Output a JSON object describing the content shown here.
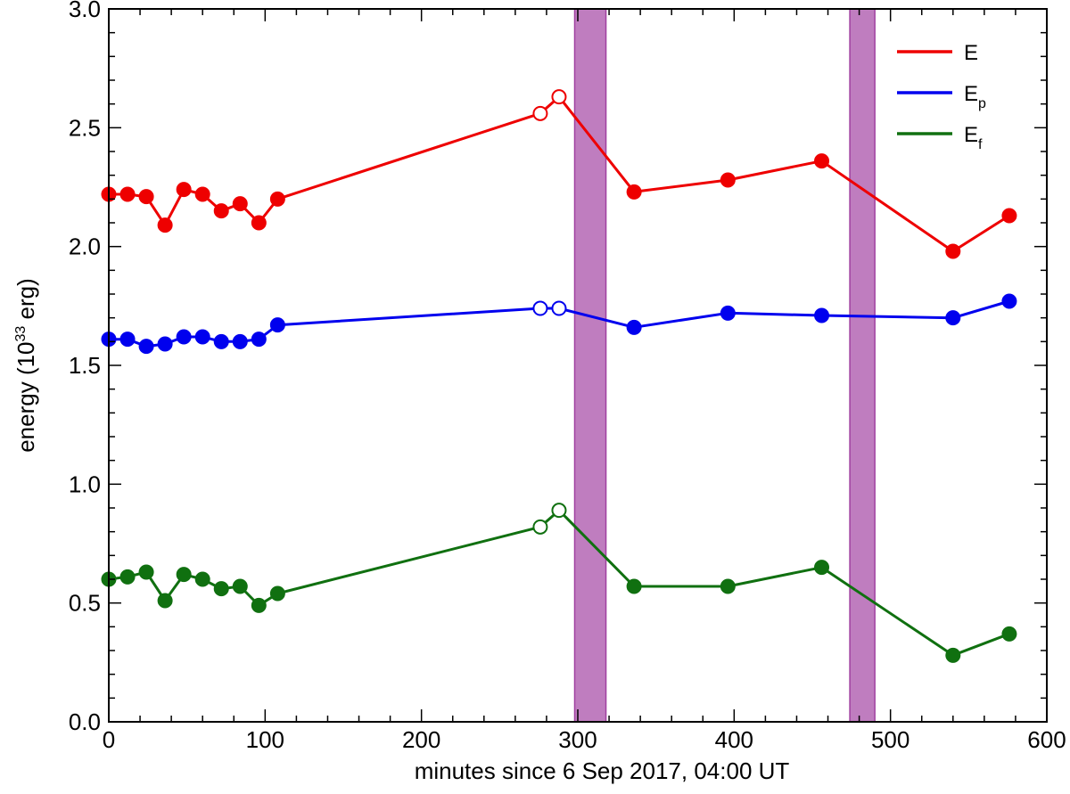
{
  "chart_data": {
    "type": "line",
    "title": "",
    "xlabel": "minutes since 6 Sep 2017, 04:00 UT",
    "ylabel": "energy (10",
    "ylabel_sup": "33",
    "ylabel_tail": " erg)",
    "xlim": [
      0,
      600
    ],
    "ylim": [
      0.0,
      3.0
    ],
    "x_ticks": [
      0,
      100,
      200,
      300,
      400,
      500,
      600
    ],
    "x_tick_labels": [
      "0",
      "100",
      "200",
      "300",
      "400",
      "500",
      "600"
    ],
    "y_ticks": [
      0.0,
      0.5,
      1.0,
      1.5,
      2.0,
      2.5,
      3.0
    ],
    "y_tick_labels": [
      "0.0",
      "0.5",
      "1.0",
      "1.5",
      "2.0",
      "2.5",
      "3.0"
    ],
    "grid": false,
    "legend_position": "top-right",
    "shaded_intervals": [
      {
        "x0": 298,
        "x1": 318,
        "color": "#a040a0"
      },
      {
        "x0": 474,
        "x1": 490,
        "color": "#a040a0"
      }
    ],
    "x": [
      0,
      12,
      24,
      36,
      48,
      60,
      72,
      84,
      96,
      108,
      276,
      288,
      336,
      396,
      456,
      540,
      576
    ],
    "open_markers": [
      false,
      false,
      false,
      false,
      false,
      false,
      false,
      false,
      false,
      false,
      true,
      true,
      false,
      false,
      false,
      false,
      false
    ],
    "series": [
      {
        "name": "E",
        "name_sub": "",
        "color": "#ee0000",
        "values": [
          2.22,
          2.22,
          2.21,
          2.09,
          2.24,
          2.22,
          2.15,
          2.18,
          2.1,
          2.2,
          2.56,
          2.63,
          2.23,
          2.28,
          2.36,
          1.98,
          2.13
        ]
      },
      {
        "name": "E",
        "name_sub": "p",
        "color": "#0000ee",
        "values": [
          1.61,
          1.61,
          1.58,
          1.59,
          1.62,
          1.62,
          1.6,
          1.6,
          1.61,
          1.67,
          1.74,
          1.74,
          1.66,
          1.72,
          1.71,
          1.7,
          1.77
        ]
      },
      {
        "name": "E",
        "name_sub": "f",
        "color": "#107010",
        "values": [
          0.6,
          0.61,
          0.63,
          0.51,
          0.62,
          0.6,
          0.56,
          0.57,
          0.49,
          0.54,
          0.82,
          0.89,
          0.57,
          0.57,
          0.65,
          0.28,
          0.37
        ]
      }
    ]
  }
}
